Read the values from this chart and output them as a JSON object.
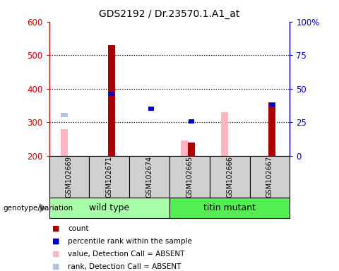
{
  "title": "GDS2192 / Dr.23570.1.A1_at",
  "samples": [
    "GSM102669",
    "GSM102671",
    "GSM102674",
    "GSM102665",
    "GSM102666",
    "GSM102667"
  ],
  "groups": [
    {
      "name": "wild type",
      "indices": [
        0,
        1,
        2
      ],
      "color": "#aaffaa"
    },
    {
      "name": "titin mutant",
      "indices": [
        3,
        4,
        5
      ],
      "color": "#55ee55"
    }
  ],
  "count_tops": [
    200,
    530,
    200,
    240,
    200,
    360
  ],
  "percentile_rank": [
    null,
    385,
    340,
    302,
    null,
    352
  ],
  "absent_value": [
    280,
    null,
    null,
    245,
    330,
    null
  ],
  "absent_rank": [
    322,
    null,
    null,
    null,
    null,
    null
  ],
  "ybot": 200,
  "ylim": [
    200,
    600
  ],
  "y2lim": [
    0,
    100
  ],
  "yticks": [
    200,
    300,
    400,
    500,
    600
  ],
  "y2ticks": [
    0,
    25,
    50,
    75,
    100
  ],
  "y2ticklabels": [
    "0",
    "25",
    "50",
    "75",
    "100%"
  ],
  "bar_color_count": "#aa0000",
  "bar_color_rank": "#0000cc",
  "bar_color_absent_value": "#ffb6c1",
  "bar_color_absent_rank": "#b0c4de",
  "axis_color_left": "#cc0000",
  "axis_color_right": "#0000cc",
  "legend_items": [
    {
      "label": "count",
      "color": "#aa0000"
    },
    {
      "label": "percentile rank within the sample",
      "color": "#0000cc"
    },
    {
      "label": "value, Detection Call = ABSENT",
      "color": "#ffb6c1"
    },
    {
      "label": "rank, Detection Call = ABSENT",
      "color": "#b0c4de"
    }
  ]
}
